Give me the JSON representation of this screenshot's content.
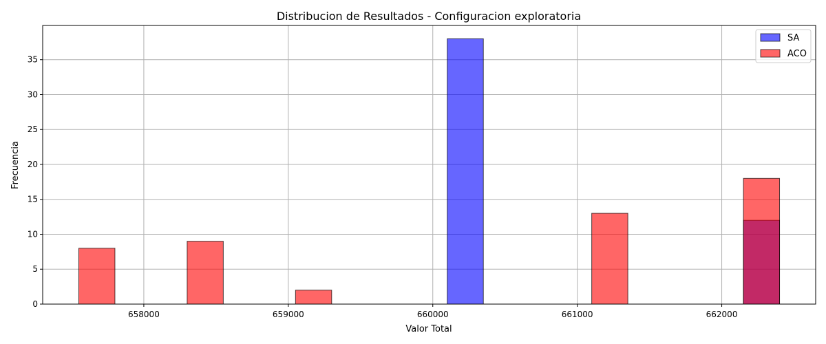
{
  "chart_data": {
    "type": "bar",
    "title": "Distribucion de Resultados - Configuracion exploratoria",
    "xlabel": "Valor Total",
    "ylabel": "Frecuencia",
    "xlim": [
      657300,
      662650
    ],
    "ylim": [
      0,
      39.9
    ],
    "xticks": [
      658000,
      659000,
      660000,
      661000,
      662000
    ],
    "yticks": [
      0,
      5,
      10,
      15,
      20,
      25,
      30,
      35
    ],
    "grid": true,
    "legend_position": "top-right",
    "bin_width": 250,
    "series": [
      {
        "name": "SA",
        "color": "#0000ff",
        "opacity": 0.6,
        "bins": [
          {
            "start": 660100,
            "count": 38
          },
          {
            "start": 662150,
            "count": 12
          }
        ]
      },
      {
        "name": "ACO",
        "color": "#ff0000",
        "opacity": 0.6,
        "bins": [
          {
            "start": 657550,
            "count": 8
          },
          {
            "start": 658300,
            "count": 9
          },
          {
            "start": 659050,
            "count": 2
          },
          {
            "start": 661100,
            "count": 13
          },
          {
            "start": 662150,
            "count": 18
          }
        ]
      }
    ]
  }
}
